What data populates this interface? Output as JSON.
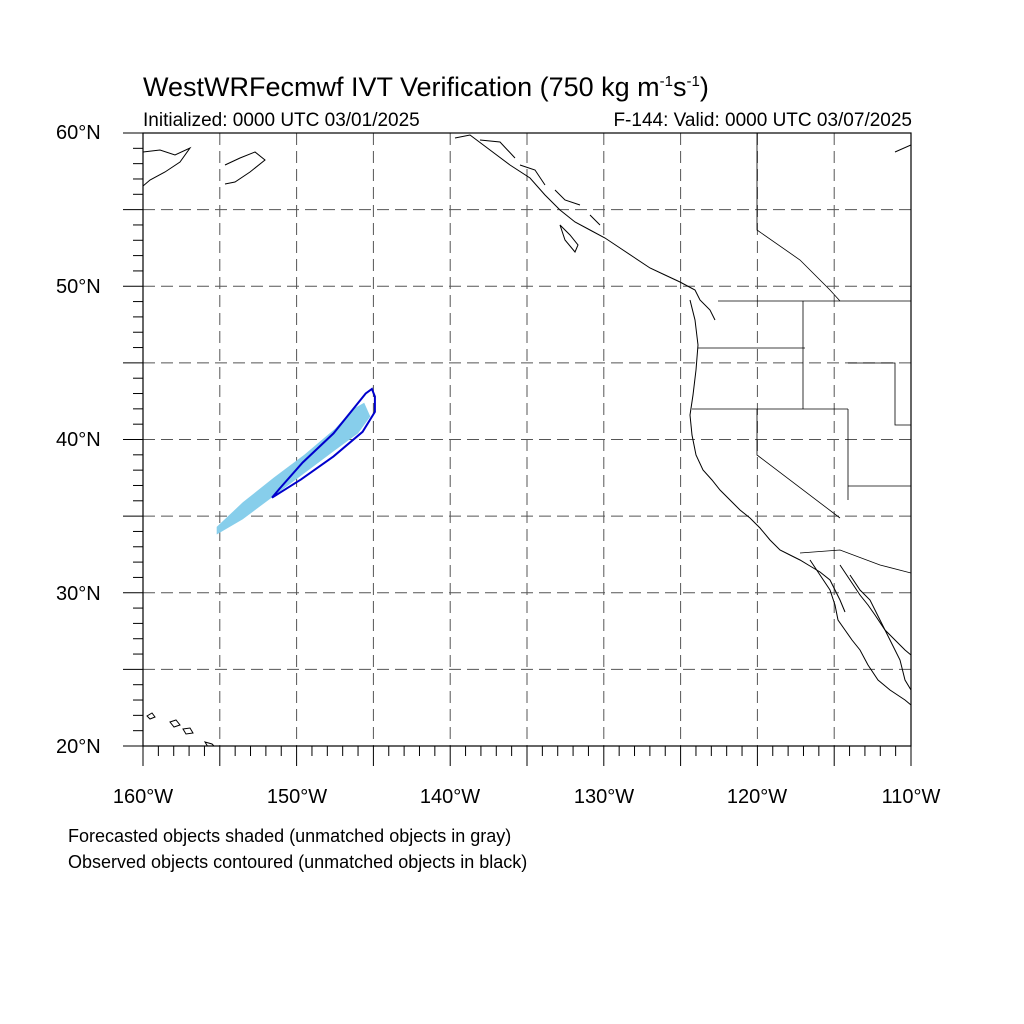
{
  "title": {
    "main": "WestWRFecmwf IVT Verification (750 kg m",
    "sup1": "-1",
    "mid": "s",
    "sup2": "-1",
    "end": ")"
  },
  "initialized": "Initialized: 0000 UTC 03/01/2025",
  "valid": "F-144: Valid: 0000 UTC 03/07/2025",
  "lat_labels": [
    "60°N",
    "50°N",
    "40°N",
    "30°N",
    "20°N"
  ],
  "lon_labels": [
    "160°W",
    "150°W",
    "140°W",
    "130°W",
    "120°W",
    "110°W"
  ],
  "notes": [
    "Forecasted objects shaded (unmatched objects in gray)",
    "Observed objects contoured (unmatched objects in black)"
  ],
  "map_data": {
    "extent": {
      "lon_min": -160,
      "lon_max": -110,
      "lat_min": 20,
      "lat_max": 60
    },
    "gridlines": {
      "lon_step": 5,
      "lat_step": 5,
      "style": "dashed"
    },
    "forecast_color": "#87CEEB",
    "observed_color": "#0000CC",
    "forecast_object": [
      [
        -155.2,
        33.8
      ],
      [
        -153.5,
        34.8
      ],
      [
        -151.5,
        36.3
      ],
      [
        -149.5,
        37.8
      ],
      [
        -147.5,
        39.3
      ],
      [
        -146.0,
        40.4
      ],
      [
        -145.2,
        41.5
      ],
      [
        -145.6,
        42.4
      ],
      [
        -146.3,
        42.0
      ],
      [
        -147.5,
        40.7
      ],
      [
        -149.5,
        39.0
      ],
      [
        -151.5,
        37.5
      ],
      [
        -153.5,
        35.9
      ],
      [
        -155.2,
        34.3
      ]
    ],
    "observed_object": [
      [
        -151.6,
        36.2
      ],
      [
        -149.7,
        37.4
      ],
      [
        -147.6,
        38.9
      ],
      [
        -145.7,
        40.5
      ],
      [
        -144.9,
        41.8
      ],
      [
        -144.9,
        42.8
      ],
      [
        -145.1,
        43.3
      ],
      [
        -145.5,
        43.0
      ],
      [
        -146.3,
        42.0
      ],
      [
        -147.6,
        40.4
      ],
      [
        -149.6,
        38.5
      ],
      [
        -151.1,
        36.8
      ]
    ]
  }
}
